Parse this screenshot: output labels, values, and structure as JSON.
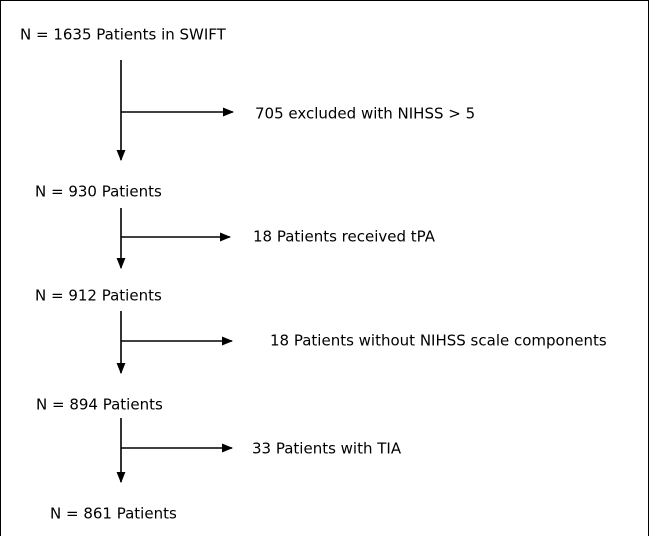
{
  "nodes": [
    {
      "label": "N = 1635 Patients in SWIFT"
    },
    {
      "label": "N = 930 Patients"
    },
    {
      "label": "N = 912 Patients"
    },
    {
      "label": "N = 894 Patients"
    },
    {
      "label": "N = 861 Patients"
    }
  ],
  "exclusions": [
    {
      "label": "705 excluded with NIHSS > 5"
    },
    {
      "label": "18 Patients received tPA"
    },
    {
      "label": "18 Patients without NIHSS scale components"
    },
    {
      "label": "33 Patients with TIA"
    }
  ]
}
